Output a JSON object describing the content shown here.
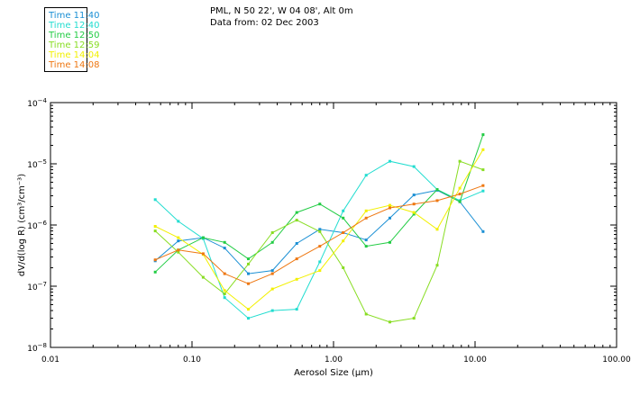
{
  "header": {
    "location": "PML, N 50 22', W 04 08', Alt 0m",
    "data_from": "Data from: 02 Dec 2003"
  },
  "colors": {
    "t1140": "#1a8fd4",
    "t1240": "#22ddd0",
    "t1250": "#22cc44",
    "t1259": "#88dd22",
    "t1404": "#f2f000",
    "t1408": "#ee7711"
  },
  "chart_data": {
    "type": "line",
    "xscale": "log",
    "yscale": "log",
    "title": "PML, N 50 22', W 04 08', Alt 0m",
    "xlabel": "Aerosol Size (µm)",
    "ylabel": "dV/d(log R) (cm³/cm⁻³)",
    "xlim": [
      0.01,
      100
    ],
    "ylim": [
      1e-08,
      0.0001
    ],
    "xticks": [
      {
        "value": 0.01,
        "label": "0.01"
      },
      {
        "value": 0.1,
        "label": "0.10"
      },
      {
        "value": 1,
        "label": "1.00"
      },
      {
        "value": 10,
        "label": "10.00"
      },
      {
        "value": 100,
        "label": "100.00"
      }
    ],
    "yticks": [
      {
        "value": 1e-08,
        "base": "10",
        "exp": "−8"
      },
      {
        "value": 1e-07,
        "base": "10",
        "exp": "−7"
      },
      {
        "value": 1e-06,
        "base": "10",
        "exp": "−6"
      },
      {
        "value": 1e-05,
        "base": "10",
        "exp": "−5"
      },
      {
        "value": 0.0001,
        "base": "10",
        "exp": "−4"
      }
    ],
    "x": [
      0.055,
      0.08,
      0.12,
      0.17,
      0.25,
      0.37,
      0.55,
      0.8,
      1.17,
      1.7,
      2.5,
      3.7,
      5.4,
      7.8,
      11.4
    ],
    "series": [
      {
        "name": "Time 11:40",
        "color_key": "t1140",
        "values": [
          2.6e-07,
          5.5e-07,
          6.2e-07,
          4.2e-07,
          1.6e-07,
          1.8e-07,
          5e-07,
          8.5e-07,
          7.5e-07,
          5.7e-07,
          1.3e-06,
          3.1e-06,
          3.7e-06,
          2.4e-06,
          7.8e-07
        ]
      },
      {
        "name": "Time 12:40",
        "color_key": "t1240",
        "values": [
          2.6e-06,
          1.15e-06,
          6e-07,
          6.5e-08,
          3e-08,
          4e-08,
          4.2e-08,
          2.5e-07,
          1.7e-06,
          6.5e-06,
          1.1e-05,
          9e-06,
          3.8e-06,
          2.5e-06,
          3.6e-06
        ]
      },
      {
        "name": "Time 12:50",
        "color_key": "t1250",
        "values": [
          1.7e-07,
          3.9e-07,
          6.2e-07,
          5.2e-07,
          2.8e-07,
          5.2e-07,
          1.6e-06,
          2.2e-06,
          1.3e-06,
          4.5e-07,
          5.2e-07,
          1.5e-06,
          3.8e-06,
          2.4e-06,
          3e-05
        ]
      },
      {
        "name": "Time 12:59",
        "color_key": "t1259",
        "values": [
          8e-07,
          3.6e-07,
          1.4e-07,
          7.5e-08,
          2.3e-07,
          7.5e-07,
          1.2e-06,
          7.8e-07,
          2e-07,
          3.5e-08,
          2.6e-08,
          3e-08,
          2.2e-07,
          1.1e-05,
          8e-06
        ]
      },
      {
        "name": "Time 14:04",
        "color_key": "t1404",
        "values": [
          9.5e-07,
          6.2e-07,
          3.3e-07,
          8.5e-08,
          4.2e-08,
          9e-08,
          1.3e-07,
          1.8e-07,
          5.5e-07,
          1.7e-06,
          2.1e-06,
          1.6e-06,
          8.5e-07,
          4e-06,
          1.7e-05
        ]
      },
      {
        "name": "Time 14:08",
        "color_key": "t1408",
        "values": [
          2.7e-07,
          3.9e-07,
          3.4e-07,
          1.6e-07,
          1.1e-07,
          1.6e-07,
          2.8e-07,
          4.5e-07,
          7.5e-07,
          1.3e-06,
          1.9e-06,
          2.2e-06,
          2.5e-06,
          3.2e-06,
          4.4e-06
        ]
      }
    ]
  }
}
